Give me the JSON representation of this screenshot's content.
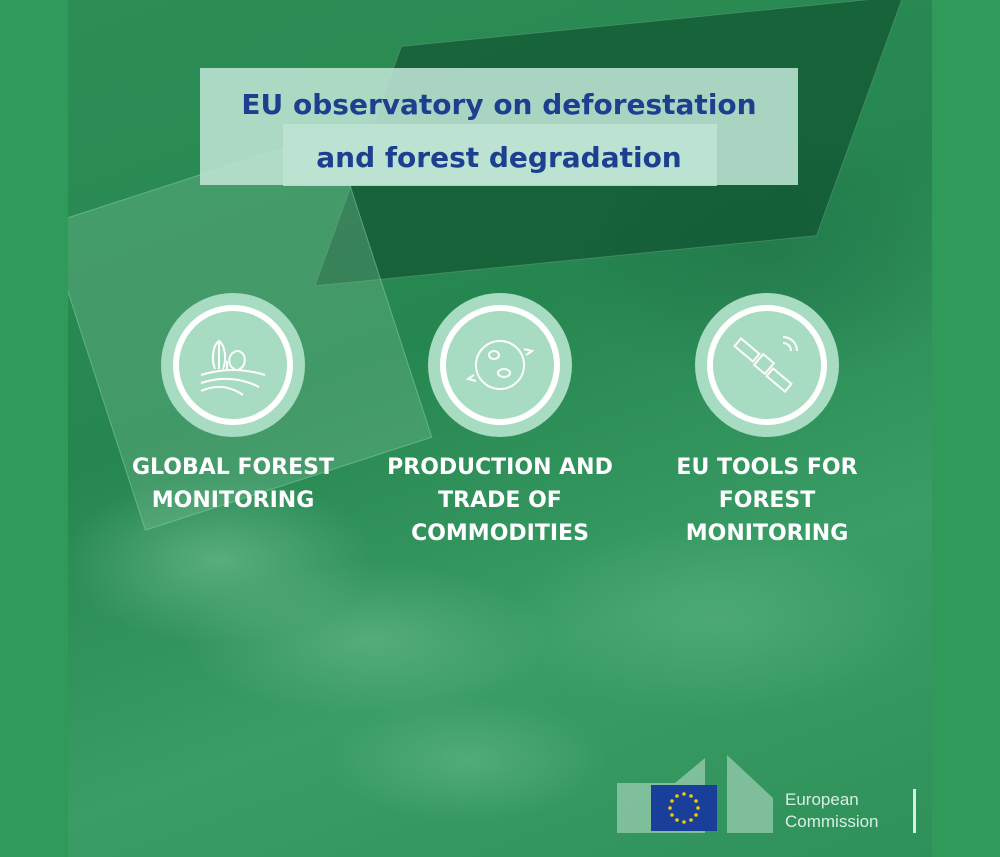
{
  "title": {
    "line1": "EU observatory on deforestation",
    "line2": "and forest degradation"
  },
  "pillars": [
    {
      "icon": "forest-landscape-icon",
      "lines": [
        "GLOBAL FOREST",
        "MONITORING"
      ]
    },
    {
      "icon": "globe-trade-icon",
      "lines": [
        "PRODUCTION AND",
        "TRADE OF",
        "COMMODITIES"
      ]
    },
    {
      "icon": "satellite-icon",
      "lines": [
        "EU TOOLS FOR",
        "FOREST",
        "MONITORING"
      ]
    }
  ],
  "logo": {
    "line1": "European",
    "line2": "Commission"
  },
  "colors": {
    "frame": "#2f9a5a",
    "title_text": "#1d3f8f",
    "circle": "#a7dbc2",
    "eu_blue": "#1a3f9a",
    "eu_star": "#f2cc00"
  }
}
